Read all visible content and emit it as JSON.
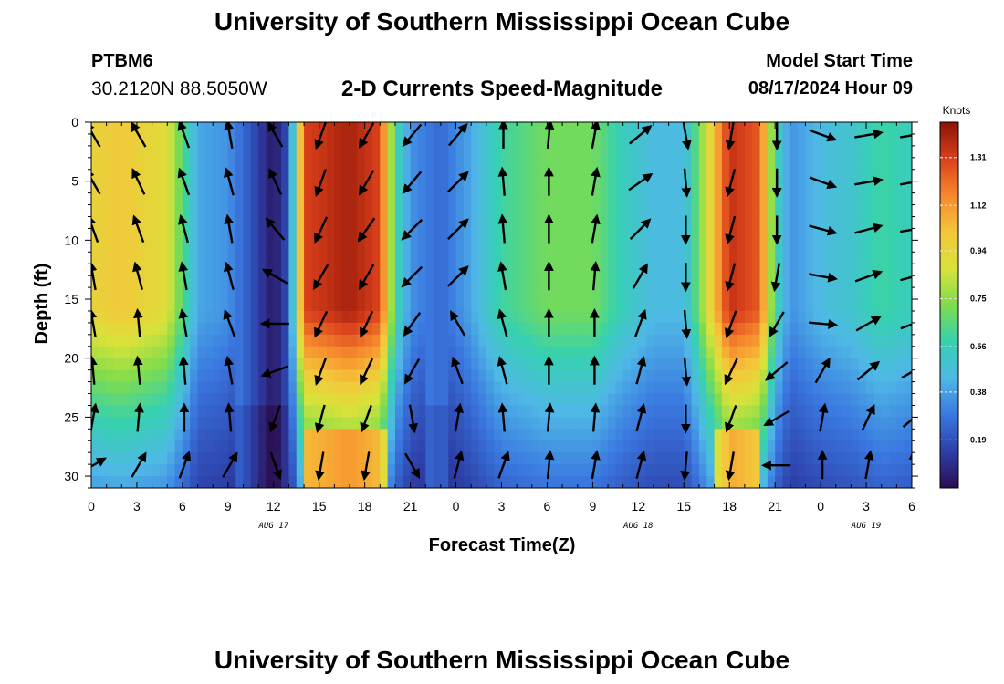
{
  "header": {
    "title": "University of Southern Mississippi Ocean Cube",
    "station_id": "PTBM6",
    "station_coords": "30.2120N  88.5050W",
    "chart_title": "2-D Currents Speed-Magnitude",
    "model_start_label": "Model Start Time",
    "model_start_value": "08/17/2024 Hour 09"
  },
  "footer": {
    "title": "University of Southern Mississippi Ocean Cube"
  },
  "colors": {
    "colormap": [
      "#2b0d4f",
      "#2d3fa8",
      "#3a78e0",
      "#4fb8e6",
      "#36d1b0",
      "#7fdc4c",
      "#d9e23a",
      "#f4c63a",
      "#f7872d",
      "#d9401c",
      "#8c1206"
    ],
    "arrow": "#000000"
  },
  "chart_data": {
    "type": "heatmap",
    "xlabel": "Forecast Time(Z)",
    "ylabel": "Depth (ft)",
    "x_tick_labels": [
      "0",
      "3",
      "6",
      "9",
      "12",
      "15",
      "18",
      "21",
      "0",
      "3",
      "6",
      "9",
      "12",
      "15",
      "18",
      "21",
      "0",
      "3",
      "6"
    ],
    "x_range_hours": [
      0,
      54
    ],
    "date_labels": [
      {
        "text": "AUG 17",
        "hour": 12
      },
      {
        "text": "AUG 18",
        "hour": 36
      },
      {
        "text": "AUG 19",
        "hour": 51
      }
    ],
    "y_ticks": [
      0,
      5,
      10,
      15,
      20,
      25,
      30
    ],
    "y_range": [
      0,
      31
    ],
    "colorbar": {
      "label": "Knots",
      "ticks": [
        "0.19",
        "0.38",
        "0.56",
        "0.75",
        "0.94",
        "1.12",
        "1.31"
      ],
      "range": [
        0,
        1.45
      ]
    },
    "time_profile": [
      {
        "t": 0,
        "s": 0.95
      },
      {
        "t": 2,
        "s": 1.0
      },
      {
        "t": 5,
        "s": 0.9
      },
      {
        "t": 7,
        "s": 0.4
      },
      {
        "t": 9,
        "s": 0.35
      },
      {
        "t": 10.5,
        "s": 0.2
      },
      {
        "t": 12,
        "s": 0.03
      },
      {
        "t": 13,
        "s": 0.2
      },
      {
        "t": 14,
        "s": 1.3
      },
      {
        "t": 17,
        "s": 1.4
      },
      {
        "t": 19,
        "s": 1.3
      },
      {
        "t": 20,
        "s": 0.6
      },
      {
        "t": 21,
        "s": 0.35
      },
      {
        "t": 23,
        "s": 0.25
      },
      {
        "t": 25,
        "s": 0.4
      },
      {
        "t": 27,
        "s": 0.6
      },
      {
        "t": 30,
        "s": 0.7
      },
      {
        "t": 33,
        "s": 0.7
      },
      {
        "t": 35,
        "s": 0.55
      },
      {
        "t": 37,
        "s": 0.45
      },
      {
        "t": 39,
        "s": 0.45
      },
      {
        "t": 40,
        "s": 0.7
      },
      {
        "t": 42,
        "s": 1.35
      },
      {
        "t": 44,
        "s": 1.25
      },
      {
        "t": 45,
        "s": 0.6
      },
      {
        "t": 46,
        "s": 0.35
      },
      {
        "t": 48,
        "s": 0.45
      },
      {
        "t": 50,
        "s": 0.5
      },
      {
        "t": 52,
        "s": 0.6
      },
      {
        "t": 54,
        "s": 0.55
      }
    ],
    "arrow_times": [
      0,
      3,
      6,
      9,
      12,
      15,
      18,
      21,
      24,
      27,
      30,
      33,
      36,
      39,
      42,
      45,
      48,
      51,
      54
    ],
    "arrow_depths": [
      0,
      4,
      8,
      12,
      16,
      20,
      24,
      28
    ],
    "arrow_dirs": [
      [
        330,
        330,
        340,
        350,
        350,
        355,
        10,
        60
      ],
      [
        330,
        335,
        340,
        345,
        355,
        355,
        5,
        30
      ],
      [
        340,
        340,
        345,
        350,
        350,
        355,
        0,
        20
      ],
      [
        350,
        345,
        350,
        345,
        340,
        350,
        355,
        30
      ],
      [
        330,
        335,
        320,
        300,
        270,
        250,
        200,
        160
      ],
      [
        200,
        200,
        205,
        210,
        205,
        200,
        195,
        190
      ],
      [
        210,
        210,
        215,
        210,
        205,
        205,
        200,
        190
      ],
      [
        220,
        220,
        225,
        225,
        215,
        210,
        170,
        150
      ],
      [
        40,
        45,
        45,
        45,
        330,
        340,
        10,
        15
      ],
      [
        0,
        355,
        355,
        350,
        345,
        345,
        355,
        20
      ],
      [
        5,
        0,
        0,
        0,
        0,
        0,
        5,
        5
      ],
      [
        10,
        10,
        10,
        5,
        0,
        0,
        5,
        10
      ],
      [
        50,
        55,
        45,
        30,
        20,
        15,
        15,
        15
      ],
      [
        170,
        175,
        180,
        180,
        175,
        175,
        180,
        185
      ],
      [
        190,
        195,
        195,
        195,
        200,
        205,
        200,
        190
      ],
      [
        180,
        180,
        180,
        190,
        210,
        230,
        240,
        270
      ],
      [
        110,
        110,
        105,
        100,
        95,
        30,
        10,
        0
      ],
      [
        80,
        80,
        75,
        70,
        60,
        50,
        25,
        10
      ],
      [
        80,
        80,
        80,
        75,
        70,
        60,
        50,
        0
      ]
    ]
  }
}
